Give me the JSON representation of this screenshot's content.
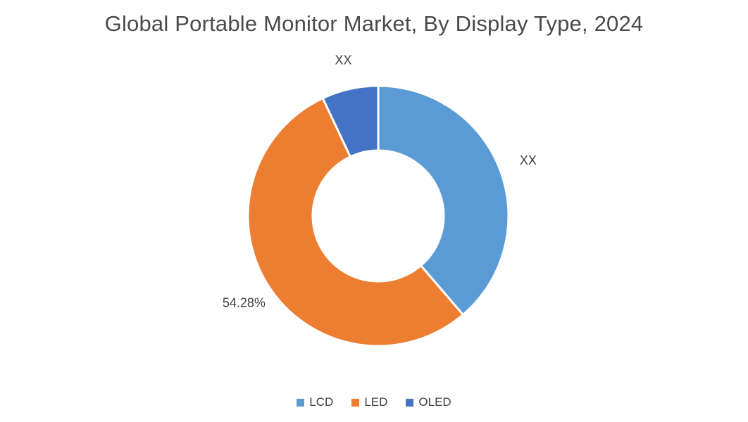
{
  "chart_data": {
    "type": "pie",
    "subtype": "donut",
    "title": "Global Portable Monitor Market, By Display Type, 2024",
    "categories": [
      "LCD",
      "LED",
      "OLED"
    ],
    "values": [
      38.72,
      54.28,
      7.0
    ],
    "data_labels": [
      "XX",
      "54.28%",
      "XX"
    ],
    "colors": [
      "#5B9BD5",
      "#ED7D31",
      "#4472C4"
    ],
    "legend_entries": [
      "LCD",
      "LED",
      "OLED"
    ],
    "legend_position": "bottom",
    "donut_hole_ratio": 0.5,
    "start_angle_deg": 0,
    "background": "#FFFFFF"
  }
}
